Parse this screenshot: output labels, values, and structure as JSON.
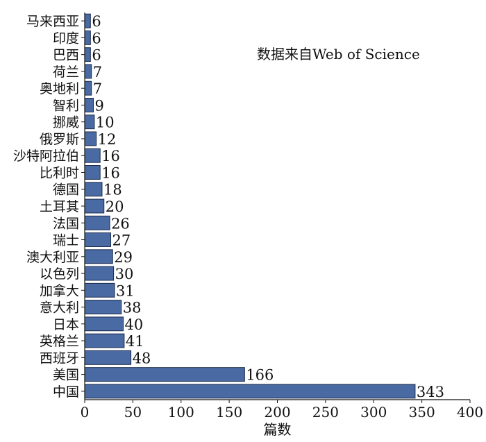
{
  "chart_data": {
    "type": "bar",
    "orientation": "horizontal",
    "categories": [
      "马来西亚",
      "印度",
      "巴西",
      "荷兰",
      "奥地利",
      "智利",
      "挪威",
      "俄罗斯",
      "沙特阿拉伯",
      "比利时",
      "德国",
      "土耳其",
      "法国",
      "瑞士",
      "澳大利亚",
      "以色列",
      "加拿大",
      "意大利",
      "日本",
      "英格兰",
      "西班牙",
      "美国",
      "中国"
    ],
    "values": [
      6,
      6,
      6,
      7,
      7,
      9,
      10,
      12,
      16,
      16,
      18,
      20,
      26,
      27,
      29,
      30,
      31,
      38,
      40,
      41,
      48,
      166,
      343
    ],
    "xlabel": "篇数",
    "ylabel": "",
    "xlim": [
      0,
      400
    ],
    "xticks": [
      0,
      50,
      100,
      150,
      200,
      250,
      300,
      350,
      400
    ],
    "annotation": "数据来自Web of Science",
    "grid": false,
    "bar_color": "#4a6aa3",
    "bar_edge_color": "#1a2a4a"
  }
}
